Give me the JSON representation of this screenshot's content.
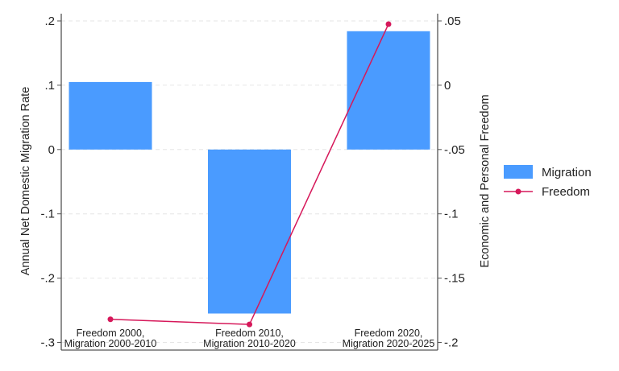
{
  "chart_data": {
    "type": "bar+line",
    "categories": [
      "Freedom 2000,|Migration 2000-2010",
      "Freedom 2010,|Migration 2010-2020",
      "Freedom 2020,|Migration 2020-2025"
    ],
    "series": [
      {
        "name": "Migration",
        "type": "bar",
        "axis": "left",
        "values": [
          0.105,
          -0.255,
          0.184
        ],
        "color": "#4a9bff"
      },
      {
        "name": "Freedom",
        "type": "line",
        "axis": "right",
        "values": [
          -0.182,
          -0.186,
          0.0475
        ],
        "color": "#d6185a"
      }
    ],
    "ylabel": "Annual Net Domestic Migration Rate",
    "y2label": "Economic and Personal Freedom",
    "ylim": [
      -0.3,
      0.2
    ],
    "y2lim": [
      -0.2,
      0.05
    ],
    "yticks": [
      ".2",
      ".1",
      "0",
      "-.1",
      "-.2",
      "-.3"
    ],
    "yticks_values": [
      0.2,
      0.1,
      0,
      -0.1,
      -0.2,
      -0.3
    ],
    "y2ticks": [
      ".05",
      "0",
      "-.05",
      "-.1",
      "-.15",
      "-.2"
    ],
    "y2ticks_values": [
      0.05,
      0,
      -0.05,
      -0.1,
      -0.15,
      -0.2
    ],
    "grid": true,
    "legend": "right"
  }
}
